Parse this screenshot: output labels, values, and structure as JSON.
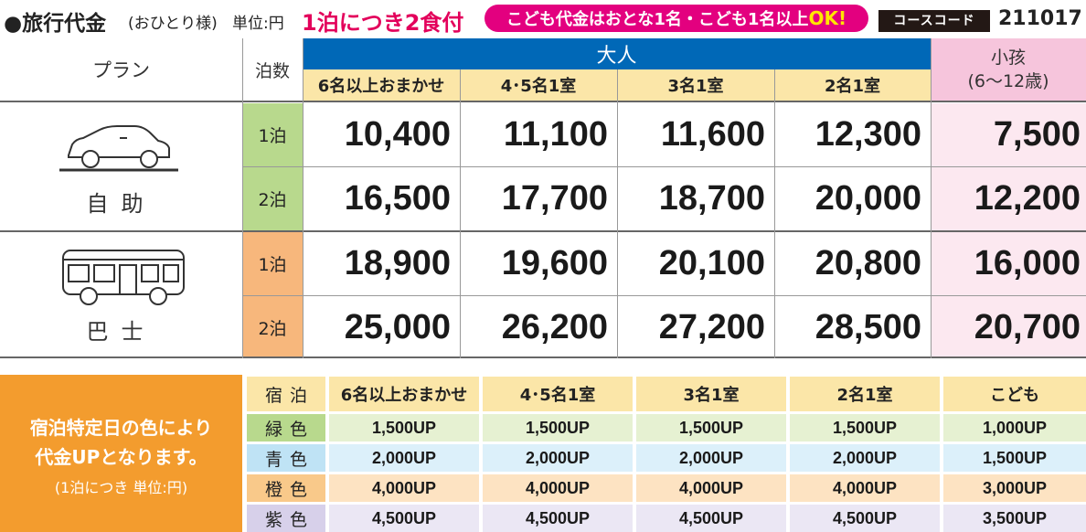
{
  "header": {
    "title": "●旅行代金",
    "per_person": "(おひとり様)",
    "unit": "単位:円",
    "meal_note": "1泊につき2食付",
    "kids_note": "こども代金はおとな1名・こども1名以上",
    "kids_ok": "OK!",
    "course_code_label": "コースコード",
    "course_code": "211017"
  },
  "price_table": {
    "plan_header": "プラン",
    "nights_header": "泊数",
    "adult_header": "大人",
    "adult_columns": [
      "6名以上おまかせ",
      "4･5名1室",
      "3名1室",
      "2名1室"
    ],
    "child_header_line1": "小孩",
    "child_header_line2": "(6〜12歳)",
    "plans": [
      {
        "name": "自助",
        "icon": "car-icon",
        "rows": [
          {
            "nights": "1泊",
            "prices": [
              "10,400",
              "11,100",
              "11,600",
              "12,300"
            ],
            "child": "7,500"
          },
          {
            "nights": "2泊",
            "prices": [
              "16,500",
              "17,700",
              "18,700",
              "20,000"
            ],
            "child": "12,200"
          }
        ]
      },
      {
        "name": "巴士",
        "icon": "bus-icon",
        "rows": [
          {
            "nights": "1泊",
            "prices": [
              "18,900",
              "19,600",
              "20,100",
              "20,800"
            ],
            "child": "16,000"
          },
          {
            "nights": "2泊",
            "prices": [
              "25,000",
              "26,200",
              "27,200",
              "28,500"
            ],
            "child": "20,700"
          }
        ]
      }
    ]
  },
  "surcharge": {
    "note_line1": "宿泊特定日の色により",
    "note_line2": "代金UPとなります。",
    "note_line3": "(1泊につき 単位:円)",
    "header": [
      "宿泊",
      "6名以上おまかせ",
      "4･5名1室",
      "3名1室",
      "2名1室",
      "こども"
    ],
    "rows": [
      {
        "label": "緑色",
        "color": "#b8d98d",
        "values": [
          "1,500UP",
          "1,500UP",
          "1,500UP",
          "1,500UP",
          "1,000UP"
        ]
      },
      {
        "label": "青色",
        "color": "#bfe3f5",
        "values": [
          "2,000UP",
          "2,000UP",
          "2,000UP",
          "2,000UP",
          "1,500UP"
        ]
      },
      {
        "label": "橙色",
        "color": "#f9c98a",
        "values": [
          "4,000UP",
          "4,000UP",
          "4,000UP",
          "4,000UP",
          "3,000UP"
        ]
      },
      {
        "label": "紫色",
        "color": "#d7d0ea",
        "values": [
          "4,500UP",
          "4,500UP",
          "4,500UP",
          "4,500UP",
          "3,500UP"
        ]
      }
    ]
  },
  "colors": {
    "adult_band": "#0068b7",
    "header_cells": "#fbe6a8",
    "child_header": "#f6c5dc",
    "child_cells": "#fce8f0",
    "self_drive_nights": "#b8d98d",
    "bus_nights": "#f7b77c",
    "surcharge_side": "#f39c2e",
    "surcharge_header_row": "#fbe6a8"
  }
}
